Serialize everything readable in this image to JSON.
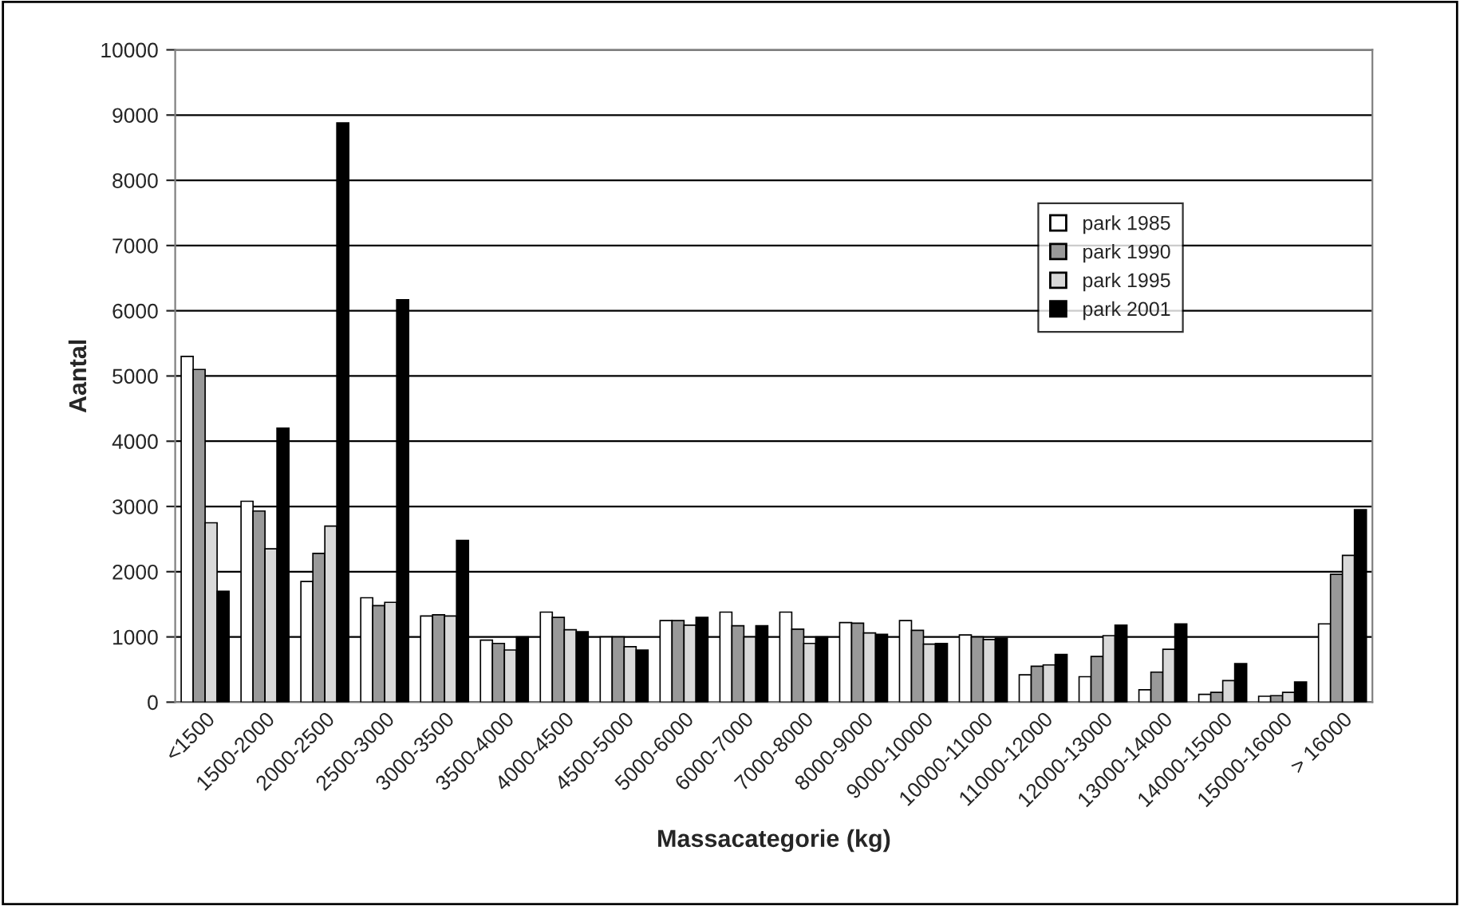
{
  "chart_data": {
    "type": "bar",
    "xlabel": "Massacategorie (kg)",
    "ylabel": "Aantal",
    "categories": [
      "<1500",
      "1500-2000",
      "2000-2500",
      "2500-3000",
      "3000-3500",
      "3500-4000",
      "4000-4500",
      "4500-5000",
      "5000-6000",
      "6000-7000",
      "7000-8000",
      "8000-9000",
      "9000-10000",
      "10000-11000",
      "11000-12000",
      "12000-13000",
      "13000-14000",
      "14000-15000",
      "15000-16000",
      "> 16000"
    ],
    "series": [
      {
        "name": "park 1985",
        "color": "#ffffff",
        "values": [
          5300,
          3080,
          1850,
          1600,
          1320,
          950,
          1380,
          1000,
          1250,
          1380,
          1380,
          1220,
          1250,
          1030,
          420,
          390,
          190,
          120,
          90,
          1200
        ]
      },
      {
        "name": "park 1990",
        "color": "#999999",
        "values": [
          5100,
          2930,
          2280,
          1480,
          1340,
          900,
          1300,
          1000,
          1250,
          1170,
          1120,
          1210,
          1100,
          1000,
          550,
          700,
          460,
          150,
          100,
          1960
        ]
      },
      {
        "name": "park 1995",
        "color": "#d9d9d9",
        "values": [
          2750,
          2350,
          2700,
          1530,
          1320,
          800,
          1110,
          850,
          1180,
          1000,
          900,
          1060,
          890,
          960,
          570,
          1020,
          810,
          330,
          150,
          2250
        ]
      },
      {
        "name": "park 2001",
        "color": "#000000",
        "values": [
          1700,
          4200,
          8880,
          6170,
          2480,
          1000,
          1080,
          800,
          1300,
          1170,
          1000,
          1040,
          900,
          980,
          730,
          1180,
          1200,
          590,
          310,
          2950
        ]
      }
    ],
    "ylim": [
      0,
      10000
    ],
    "yticks": [
      0,
      1000,
      2000,
      3000,
      4000,
      5000,
      6000,
      7000,
      8000,
      9000,
      10000
    ],
    "grid": "y",
    "legend": "top right"
  }
}
